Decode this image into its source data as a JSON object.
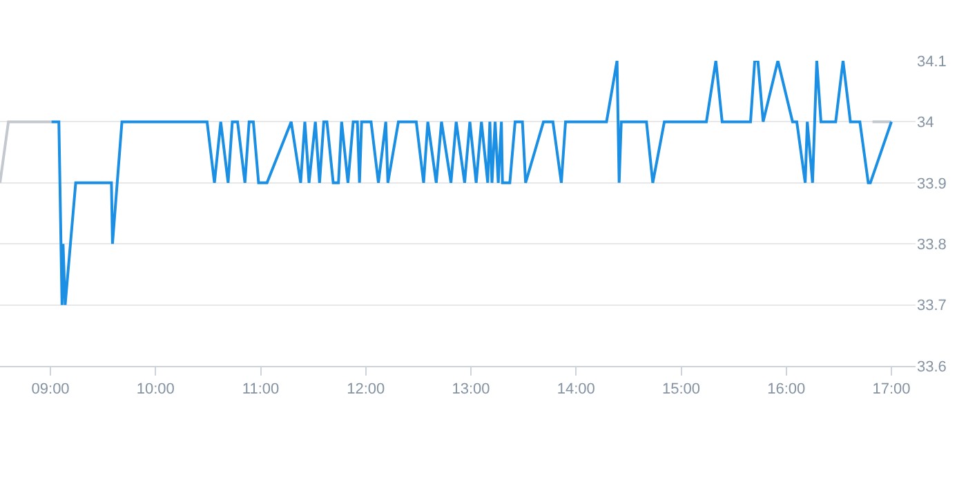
{
  "chart_data": {
    "type": "line",
    "xlim": [
      8.52,
      17.23
    ],
    "xticks": [
      {
        "value": 9,
        "label": "09:00"
      },
      {
        "value": 10,
        "label": "10:00"
      },
      {
        "value": 11,
        "label": "11:00"
      },
      {
        "value": 12,
        "label": "12:00"
      },
      {
        "value": 13,
        "label": "13:00"
      },
      {
        "value": 14,
        "label": "14:00"
      },
      {
        "value": 15,
        "label": "15:00"
      },
      {
        "value": 16,
        "label": "16:00"
      },
      {
        "value": 17,
        "label": "17:00"
      }
    ],
    "ylim": [
      33.6,
      34.1
    ],
    "yticks": [
      33.6,
      33.7,
      33.8,
      33.9,
      {
        "value": 34,
        "label": "34"
      },
      34.1
    ],
    "grid": "y",
    "marker": "none",
    "line_style": "solid",
    "series": [
      {
        "color": "#c3c9cf",
        "x": [
          8.52,
          8.6,
          9.01
        ],
        "values": [
          33.9,
          34,
          34
        ]
      },
      {
        "color": "#c3c9cf",
        "x": [
          16.82,
          17.0
        ],
        "values": [
          34,
          34
        ]
      },
      {
        "color": "#1a8fe3",
        "x": [
          9.01,
          9.08,
          9.11,
          9.12,
          9.14,
          9.24,
          9.58,
          9.59,
          9.68,
          10.49,
          10.56,
          10.62,
          10.69,
          10.73,
          10.78,
          10.85,
          10.89,
          10.93,
          10.98,
          11.06,
          11.29,
          11.38,
          11.42,
          11.46,
          11.52,
          11.56,
          11.6,
          11.63,
          11.69,
          11.74,
          11.77,
          11.83,
          11.88,
          11.92,
          11.94,
          11.96,
          12.05,
          12.12,
          12.19,
          12.21,
          12.31,
          12.48,
          12.55,
          12.59,
          12.67,
          12.72,
          12.81,
          12.86,
          12.94,
          12.99,
          13.05,
          13.1,
          13.16,
          13.18,
          13.2,
          13.23,
          13.26,
          13.29,
          13.3,
          13.37,
          13.42,
          13.49,
          13.52,
          13.69,
          13.78,
          13.86,
          13.9,
          14.29,
          14.39,
          14.41,
          14.43,
          14.67,
          14.73,
          14.84,
          15.24,
          15.33,
          15.39,
          15.66,
          15.7,
          15.73,
          15.78,
          15.92,
          16.06,
          16.1,
          16.18,
          16.2,
          16.25,
          16.29,
          16.33,
          16.47,
          16.54,
          16.61,
          16.7,
          16.78,
          16.8,
          17.0
        ],
        "values": [
          34,
          34,
          33.7,
          33.8,
          33.7,
          33.9,
          33.9,
          33.8,
          34,
          34,
          33.9,
          34,
          33.9,
          34,
          34,
          33.9,
          34,
          34,
          33.9,
          33.9,
          34,
          33.9,
          34,
          33.9,
          34,
          33.9,
          34,
          34,
          33.9,
          33.9,
          34,
          33.9,
          34,
          34,
          33.9,
          34,
          34,
          33.9,
          34,
          33.9,
          34,
          34,
          33.9,
          34,
          33.9,
          34,
          33.9,
          34,
          33.9,
          34,
          33.9,
          34,
          33.9,
          34,
          33.9,
          34,
          33.9,
          34,
          33.9,
          33.9,
          34,
          34,
          33.9,
          34,
          34,
          33.9,
          34,
          34,
          34.1,
          33.9,
          34,
          34,
          33.9,
          34,
          34,
          34.1,
          34,
          34,
          34.1,
          34.1,
          34,
          34.1,
          34,
          34,
          33.9,
          34,
          33.9,
          34.1,
          34,
          34,
          34.1,
          34,
          34,
          33.9,
          33.9,
          34
        ]
      }
    ]
  }
}
